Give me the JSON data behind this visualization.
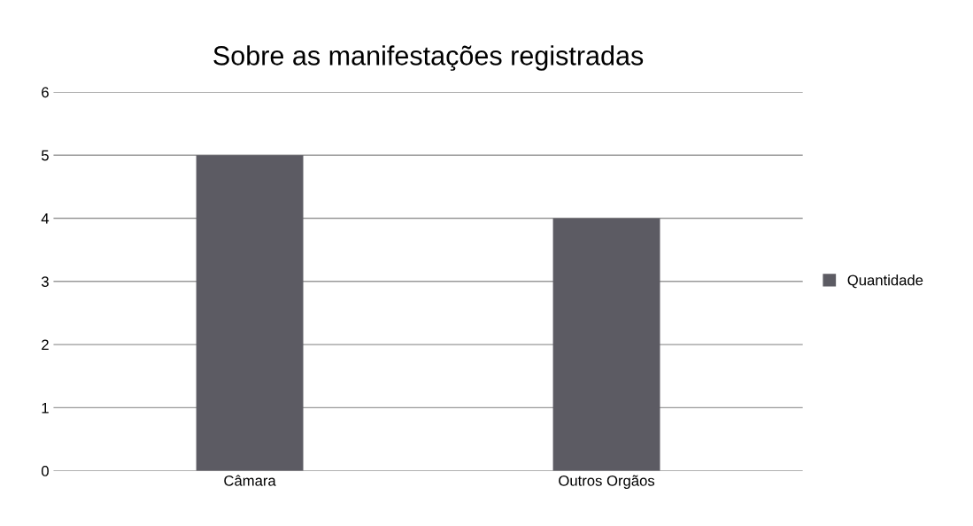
{
  "chart_data": {
    "type": "bar",
    "title": "Sobre as manifestações registradas",
    "categories": [
      "Câmara",
      "Outros Orgãos"
    ],
    "series": [
      {
        "name": "Quantidade",
        "color": "#5c5b63",
        "values": [
          5,
          4
        ]
      }
    ],
    "ylim": [
      0,
      6
    ],
    "yticks": [
      0,
      1,
      2,
      3,
      4,
      5,
      6
    ],
    "grid": "y",
    "legend": "right"
  }
}
